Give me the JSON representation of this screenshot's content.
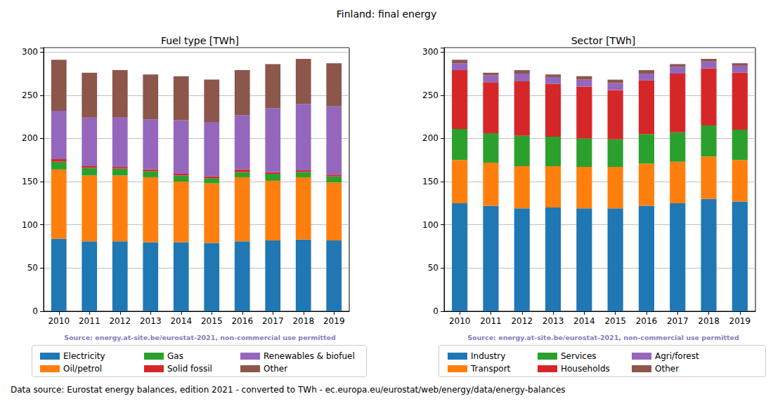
{
  "title": "Finland: final energy",
  "footer": "Data source: Eurostat energy balances, edition 2021 - converted to TWh - ec.europa.eu/eurostat/web/energy/data/energy-balances",
  "chart_data": [
    {
      "type": "bar",
      "title": "Fuel type [TWh]",
      "stacked": true,
      "grid": true,
      "legend": "bottom",
      "annotations": [
        "Source: energy.at-site.be/eurostat-2021, non-commercial use permitted"
      ],
      "categories": [
        "2010",
        "2011",
        "2012",
        "2013",
        "2014",
        "2015",
        "2016",
        "2017",
        "2018",
        "2019"
      ],
      "ylim": [
        0,
        305
      ],
      "yticks": [
        0,
        50,
        100,
        150,
        200,
        250,
        300
      ],
      "series": [
        {
          "name": "Electricity",
          "color": "#1f77b4",
          "values": [
            84,
            81,
            81,
            80,
            80,
            79,
            81,
            82,
            83,
            82
          ]
        },
        {
          "name": "Oil/petrol",
          "color": "#ff7f0e",
          "values": [
            80,
            76,
            76,
            75,
            70,
            69,
            74,
            69,
            72,
            67
          ]
        },
        {
          "name": "Gas",
          "color": "#2ca02c",
          "values": [
            9,
            9,
            8,
            7,
            7,
            6,
            6,
            8,
            6,
            7
          ]
        },
        {
          "name": "Solid fossil",
          "color": "#d62728",
          "values": [
            3,
            2,
            2,
            2,
            2,
            2,
            3,
            2,
            2,
            2
          ]
        },
        {
          "name": "Renewables & biofuel",
          "color": "#9467bd",
          "values": [
            56,
            56,
            57,
            58,
            62,
            63,
            63,
            74,
            77,
            79
          ]
        },
        {
          "name": "Other",
          "color": "#8c564b",
          "values": [
            59,
            52,
            55,
            52,
            51,
            49,
            52,
            51,
            52,
            50
          ]
        }
      ]
    },
    {
      "type": "bar",
      "title": "Sector [TWh]",
      "stacked": true,
      "grid": true,
      "legend": "bottom",
      "annotations": [
        "Source: energy.at-site.be/eurostat-2021, non-commercial use permitted"
      ],
      "categories": [
        "2010",
        "2011",
        "2012",
        "2013",
        "2014",
        "2015",
        "2016",
        "2017",
        "2018",
        "2019"
      ],
      "ylim": [
        0,
        305
      ],
      "yticks": [
        0,
        50,
        100,
        150,
        200,
        250,
        300
      ],
      "series": [
        {
          "name": "Industry",
          "color": "#1f77b4",
          "values": [
            125,
            122,
            119,
            120,
            119,
            119,
            122,
            125,
            130,
            127
          ]
        },
        {
          "name": "Transport",
          "color": "#ff7f0e",
          "values": [
            50,
            50,
            49,
            48,
            48,
            48,
            49,
            48,
            49,
            48
          ]
        },
        {
          "name": "Services",
          "color": "#2ca02c",
          "values": [
            36,
            34,
            35,
            34,
            33,
            32,
            34,
            34,
            36,
            35
          ]
        },
        {
          "name": "Households",
          "color": "#d62728",
          "values": [
            68,
            59,
            63,
            61,
            60,
            57,
            62,
            68,
            66,
            66
          ]
        },
        {
          "name": "Agri/forest",
          "color": "#9467bd",
          "values": [
            8,
            8,
            9,
            8,
            8,
            8,
            8,
            8,
            8,
            8
          ]
        },
        {
          "name": "Other",
          "color": "#8c564b",
          "values": [
            4,
            3,
            4,
            3,
            4,
            4,
            4,
            3,
            3,
            3
          ]
        }
      ]
    }
  ]
}
